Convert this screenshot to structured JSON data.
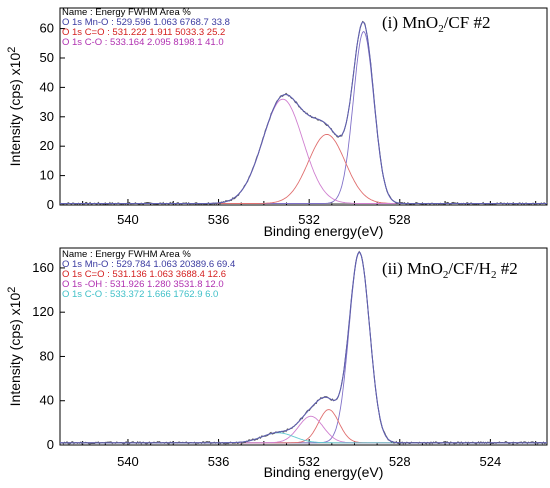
{
  "chart_data": [
    {
      "type": "line",
      "title_main": "(i) MnO",
      "title_sub1": "2",
      "title_tail": "/CF #2",
      "xlabel": "Binding energy(eV)",
      "ylabel": "Intensity (cps) x10",
      "ylabel_sup": "2",
      "xlim": [
        543,
        521.5
      ],
      "ylim": [
        0,
        67
      ],
      "xticks": [
        "540",
        "536",
        "532",
        "528"
      ],
      "xtick_values": [
        540,
        536,
        532,
        528
      ],
      "yticks": [
        "0",
        "10",
        "20",
        "30",
        "40",
        "50",
        "60"
      ],
      "ytick_values": [
        0,
        10,
        20,
        30,
        40,
        50,
        60
      ],
      "legend_header": "Name : Energy  FWHM   Area  %",
      "legend": [
        {
          "text": "O 1s Mn-O : 529.596    1.063    6768.7    33.8",
          "color": "#3a3aa0"
        },
        {
          "text": "O 1s C=O : 531.222    1.911    5033.3    25.2",
          "color": "#d42020"
        },
        {
          "text": "O 1s C-O : 533.164    2.095    8198.1    41.0",
          "color": "#b030b0"
        }
      ],
      "background": 0.5,
      "peaks": [
        {
          "name": "O 1s Mn-O",
          "center": 529.596,
          "fwhm": 1.063,
          "height": 58.5,
          "color": "#8070c8"
        },
        {
          "name": "O 1s C=O",
          "center": 531.222,
          "fwhm": 1.911,
          "height": 23.5,
          "color": "#e07070"
        },
        {
          "name": "O 1s C-O",
          "center": 533.164,
          "fwhm": 2.095,
          "height": 35.5,
          "color": "#d080d0"
        }
      ],
      "envelope_color": "#6060b0",
      "raw_color": "#555555"
    },
    {
      "type": "line",
      "title_main": "(ii) MnO",
      "title_sub1": "2",
      "title_mid": "/CF/H",
      "title_sub2": "2",
      "title_tail": " #2",
      "xlabel": "Binding energy(eV)",
      "ylabel": "Intensity (cps) x10",
      "ylabel_sup": "2",
      "xlim": [
        543,
        521.5
      ],
      "ylim": [
        0,
        178
      ],
      "xticks": [
        "540",
        "536",
        "532",
        "528",
        "524"
      ],
      "xtick_values": [
        540,
        536,
        532,
        528,
        524
      ],
      "yticks": [
        "0",
        "40",
        "80",
        "120",
        "160"
      ],
      "ytick_values": [
        0,
        40,
        80,
        120,
        160
      ],
      "legend_header": "Name : Energy  FWHM   Area  %",
      "legend": [
        {
          "text": "O 1s Mn-O : 529.784    1.063    20389.6    69.4",
          "color": "#3a3aa0"
        },
        {
          "text": "O 1s C=O : 531.136    1.063    3688.4    12.6",
          "color": "#d42020"
        },
        {
          "text": "O 1s -OH : 531.926    1.280    3531.8    12.0",
          "color": "#b030b0"
        },
        {
          "text": "O 1s C-O : 533.372    1.666    1762.9    6.0",
          "color": "#40c0c8"
        }
      ],
      "background": 2,
      "peaks": [
        {
          "name": "O 1s Mn-O",
          "center": 529.784,
          "fwhm": 1.063,
          "height": 172,
          "color": "#8070c8"
        },
        {
          "name": "O 1s C=O",
          "center": 531.136,
          "fwhm": 1.063,
          "height": 30,
          "color": "#e07070"
        },
        {
          "name": "O 1s -OH",
          "center": 531.926,
          "fwhm": 1.28,
          "height": 24,
          "color": "#d080d0"
        },
        {
          "name": "O 1s C-O",
          "center": 533.372,
          "fwhm": 1.666,
          "height": 9,
          "color": "#60c8d0"
        }
      ],
      "envelope_color": "#6060b0",
      "raw_color": "#555555"
    }
  ]
}
